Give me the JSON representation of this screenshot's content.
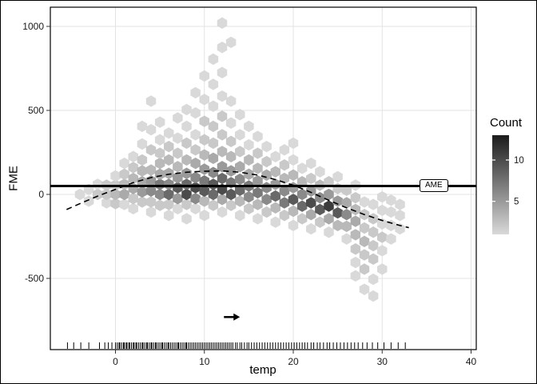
{
  "figure": {
    "background": "#ffffff",
    "border_color": "#000000"
  },
  "chart_data": {
    "type": "scatter",
    "subtype": "hexbin",
    "title": "",
    "xlabel": "temp",
    "ylabel": "FME",
    "xlim": [
      -7.3,
      40.6
    ],
    "ylim": [
      -920,
      1115
    ],
    "x_ticks": [
      0,
      10,
      20,
      30,
      40
    ],
    "y_ticks": [
      -500,
      0,
      500,
      1000
    ],
    "grid": true,
    "grid_color": "#e3e3e3",
    "legend": {
      "title": "Count",
      "position": "right",
      "min": 1,
      "max": 13,
      "tick_values": [
        10,
        5
      ],
      "color_low": "#d9d9d9",
      "color_high": "#1b1b1b"
    },
    "annotations": {
      "ame_label": "AME",
      "ame_line_y": 50,
      "arrow": {
        "x1": 12.2,
        "x2": 14.0,
        "y": -730
      }
    },
    "smooth_curve": [
      [
        -5.5,
        -90
      ],
      [
        -4,
        -55
      ],
      [
        -2,
        -10
      ],
      [
        0,
        30
      ],
      [
        2,
        70
      ],
      [
        4,
        100
      ],
      [
        6,
        120
      ],
      [
        8,
        132
      ],
      [
        10,
        138
      ],
      [
        12,
        140
      ],
      [
        14,
        132
      ],
      [
        16,
        115
      ],
      [
        18,
        88
      ],
      [
        20,
        55
      ],
      [
        22,
        12
      ],
      [
        24,
        -35
      ],
      [
        26,
        -80
      ],
      [
        28,
        -120
      ],
      [
        30,
        -155
      ],
      [
        32,
        -185
      ],
      [
        33,
        -198
      ]
    ],
    "rug_x": [
      -5.4,
      -4.7,
      -3.9,
      -3.0,
      -1.8,
      -1.2,
      -0.8,
      -0.4,
      0.0,
      0.2,
      0.4,
      0.5,
      0.7,
      0.9,
      1.0,
      1.2,
      1.3,
      1.5,
      1.6,
      1.8,
      2.0,
      2.1,
      2.3,
      2.4,
      2.6,
      2.8,
      3.0,
      3.1,
      3.3,
      3.5,
      3.6,
      3.8,
      4.0,
      4.1,
      4.3,
      4.5,
      4.6,
      4.8,
      5.0,
      5.2,
      5.3,
      5.5,
      5.7,
      5.9,
      6.0,
      6.2,
      6.4,
      6.6,
      6.8,
      7.0,
      7.1,
      7.3,
      7.5,
      7.7,
      7.9,
      8.0,
      8.2,
      8.4,
      8.6,
      8.8,
      9.0,
      9.2,
      9.4,
      9.6,
      9.8,
      10.0,
      10.2,
      10.4,
      10.6,
      10.8,
      11.0,
      11.2,
      11.4,
      11.6,
      11.8,
      12.0,
      12.2,
      12.4,
      12.6,
      12.8,
      13.0,
      13.2,
      13.5,
      13.7,
      14.0,
      14.2,
      14.5,
      14.8,
      15.0,
      15.3,
      15.6,
      15.9,
      16.2,
      16.5,
      16.8,
      17.1,
      17.4,
      17.7,
      18.0,
      18.3,
      18.6,
      18.9,
      19.2,
      19.5,
      19.8,
      20.1,
      20.4,
      20.7,
      21.0,
      21.3,
      21.6,
      22.0,
      22.3,
      22.7,
      23.0,
      23.4,
      23.8,
      24.1,
      24.5,
      24.9,
      25.3,
      25.7,
      26.1,
      26.5,
      26.9,
      27.3,
      27.8,
      28.3,
      28.9,
      29.5,
      30.2,
      31.0,
      31.8,
      32.6
    ],
    "hexbins": [
      [
        -4,
        0,
        1
      ],
      [
        -3,
        -40,
        1
      ],
      [
        -3,
        30,
        1
      ],
      [
        -2,
        0,
        2
      ],
      [
        -2,
        60,
        1
      ],
      [
        -1,
        -50,
        1
      ],
      [
        -1,
        0,
        2
      ],
      [
        -1,
        55,
        2
      ],
      [
        0,
        -55,
        2
      ],
      [
        0,
        0,
        3
      ],
      [
        0,
        55,
        2
      ],
      [
        0,
        110,
        1
      ],
      [
        1,
        -60,
        1
      ],
      [
        1,
        0,
        4
      ],
      [
        1,
        60,
        3
      ],
      [
        1,
        120,
        2
      ],
      [
        1,
        185,
        1
      ],
      [
        2,
        -85,
        1
      ],
      [
        2,
        -25,
        2
      ],
      [
        2,
        35,
        4
      ],
      [
        2,
        95,
        3
      ],
      [
        2,
        160,
        2
      ],
      [
        2,
        225,
        1
      ],
      [
        3,
        -45,
        2
      ],
      [
        3,
        15,
        5
      ],
      [
        3,
        75,
        4
      ],
      [
        3,
        140,
        3
      ],
      [
        3,
        205,
        2
      ],
      [
        3,
        300,
        1
      ],
      [
        3,
        405,
        1
      ],
      [
        4,
        -105,
        1
      ],
      [
        4,
        -45,
        2
      ],
      [
        4,
        20,
        6
      ],
      [
        4,
        80,
        5
      ],
      [
        4,
        145,
        3
      ],
      [
        4,
        265,
        2
      ],
      [
        4,
        385,
        1
      ],
      [
        4,
        555,
        1
      ],
      [
        5,
        -65,
        2
      ],
      [
        5,
        0,
        6
      ],
      [
        5,
        60,
        7
      ],
      [
        5,
        120,
        4
      ],
      [
        5,
        185,
        3
      ],
      [
        5,
        245,
        2
      ],
      [
        5,
        325,
        1
      ],
      [
        5,
        430,
        1
      ],
      [
        6,
        -125,
        1
      ],
      [
        6,
        -60,
        2
      ],
      [
        6,
        0,
        8
      ],
      [
        6,
        60,
        6
      ],
      [
        6,
        125,
        4
      ],
      [
        6,
        205,
        3
      ],
      [
        6,
        285,
        2
      ],
      [
        6,
        365,
        1
      ],
      [
        7,
        -85,
        1
      ],
      [
        7,
        -25,
        5
      ],
      [
        7,
        40,
        9
      ],
      [
        7,
        100,
        5
      ],
      [
        7,
        165,
        3
      ],
      [
        7,
        245,
        2
      ],
      [
        7,
        335,
        1
      ],
      [
        7,
        455,
        1
      ],
      [
        8,
        -145,
        1
      ],
      [
        8,
        -60,
        2
      ],
      [
        8,
        0,
        10
      ],
      [
        8,
        60,
        8
      ],
      [
        8,
        125,
        5
      ],
      [
        8,
        205,
        3
      ],
      [
        8,
        305,
        2
      ],
      [
        8,
        405,
        1
      ],
      [
        8,
        505,
        1
      ],
      [
        9,
        -85,
        1
      ],
      [
        9,
        -25,
        6
      ],
      [
        9,
        40,
        10
      ],
      [
        9,
        100,
        6
      ],
      [
        9,
        185,
        4
      ],
      [
        9,
        265,
        2
      ],
      [
        9,
        355,
        1
      ],
      [
        9,
        485,
        1
      ],
      [
        9,
        605,
        1
      ],
      [
        10,
        -125,
        1
      ],
      [
        10,
        -40,
        3
      ],
      [
        10,
        20,
        9
      ],
      [
        10,
        80,
        7
      ],
      [
        10,
        150,
        5
      ],
      [
        10,
        235,
        3
      ],
      [
        10,
        325,
        2
      ],
      [
        10,
        435,
        2
      ],
      [
        10,
        565,
        1
      ],
      [
        10,
        705,
        1
      ],
      [
        11,
        -65,
        2
      ],
      [
        11,
        0,
        8
      ],
      [
        11,
        60,
        9
      ],
      [
        11,
        130,
        6
      ],
      [
        11,
        215,
        4
      ],
      [
        11,
        305,
        2
      ],
      [
        11,
        405,
        2
      ],
      [
        11,
        525,
        1
      ],
      [
        11,
        655,
        1
      ],
      [
        11,
        805,
        1
      ],
      [
        12,
        -105,
        1
      ],
      [
        12,
        -30,
        4
      ],
      [
        12,
        30,
        10
      ],
      [
        12,
        95,
        8
      ],
      [
        12,
        165,
        5
      ],
      [
        12,
        255,
        3
      ],
      [
        12,
        355,
        2
      ],
      [
        12,
        465,
        2
      ],
      [
        12,
        585,
        1
      ],
      [
        12,
        725,
        1
      ],
      [
        12,
        875,
        1
      ],
      [
        12,
        1020,
        1
      ],
      [
        13,
        -65,
        2
      ],
      [
        13,
        0,
        9
      ],
      [
        13,
        70,
        7
      ],
      [
        13,
        140,
        5
      ],
      [
        13,
        225,
        3
      ],
      [
        13,
        315,
        2
      ],
      [
        13,
        425,
        1
      ],
      [
        13,
        555,
        1
      ],
      [
        13,
        905,
        1
      ],
      [
        14,
        -125,
        1
      ],
      [
        14,
        -40,
        3
      ],
      [
        14,
        25,
        8
      ],
      [
        14,
        90,
        6
      ],
      [
        14,
        165,
        4
      ],
      [
        14,
        255,
        2
      ],
      [
        14,
        355,
        1
      ],
      [
        14,
        475,
        1
      ],
      [
        15,
        -85,
        2
      ],
      [
        15,
        -15,
        6
      ],
      [
        15,
        50,
        7
      ],
      [
        15,
        120,
        4
      ],
      [
        15,
        205,
        3
      ],
      [
        15,
        295,
        1
      ],
      [
        15,
        405,
        1
      ],
      [
        16,
        -145,
        1
      ],
      [
        16,
        -60,
        3
      ],
      [
        16,
        10,
        7
      ],
      [
        16,
        80,
        5
      ],
      [
        16,
        155,
        3
      ],
      [
        16,
        245,
        2
      ],
      [
        16,
        345,
        1
      ],
      [
        17,
        -105,
        2
      ],
      [
        17,
        -30,
        6
      ],
      [
        17,
        40,
        6
      ],
      [
        17,
        115,
        4
      ],
      [
        17,
        195,
        2
      ],
      [
        17,
        285,
        1
      ],
      [
        18,
        -165,
        1
      ],
      [
        18,
        -80,
        3
      ],
      [
        18,
        -10,
        8
      ],
      [
        18,
        60,
        5
      ],
      [
        18,
        135,
        3
      ],
      [
        18,
        225,
        1
      ],
      [
        19,
        -125,
        2
      ],
      [
        19,
        -50,
        7
      ],
      [
        19,
        20,
        6
      ],
      [
        19,
        95,
        3
      ],
      [
        19,
        175,
        2
      ],
      [
        19,
        265,
        1
      ],
      [
        20,
        -185,
        1
      ],
      [
        20,
        -100,
        3
      ],
      [
        20,
        -30,
        9
      ],
      [
        20,
        40,
        5
      ],
      [
        20,
        115,
        3
      ],
      [
        20,
        205,
        1
      ],
      [
        20,
        305,
        1
      ],
      [
        21,
        -145,
        2
      ],
      [
        21,
        -70,
        8
      ],
      [
        21,
        0,
        6
      ],
      [
        21,
        75,
        3
      ],
      [
        21,
        155,
        1
      ],
      [
        22,
        -205,
        1
      ],
      [
        22,
        -120,
        4
      ],
      [
        22,
        -50,
        10
      ],
      [
        22,
        20,
        5
      ],
      [
        22,
        95,
        2
      ],
      [
        22,
        185,
        1
      ],
      [
        23,
        -165,
        2
      ],
      [
        23,
        -90,
        9
      ],
      [
        23,
        -20,
        6
      ],
      [
        23,
        55,
        3
      ],
      [
        23,
        135,
        1
      ],
      [
        24,
        -225,
        1
      ],
      [
        24,
        -145,
        4
      ],
      [
        24,
        -70,
        11
      ],
      [
        24,
        0,
        5
      ],
      [
        24,
        75,
        2
      ],
      [
        25,
        -185,
        3
      ],
      [
        25,
        -110,
        9
      ],
      [
        25,
        -40,
        5
      ],
      [
        25,
        35,
        2
      ],
      [
        25,
        105,
        1
      ],
      [
        26,
        -265,
        1
      ],
      [
        26,
        -190,
        3
      ],
      [
        26,
        -120,
        6
      ],
      [
        26,
        -50,
        4
      ],
      [
        26,
        25,
        2
      ],
      [
        27,
        -485,
        1
      ],
      [
        27,
        -405,
        1
      ],
      [
        27,
        -325,
        2
      ],
      [
        27,
        -240,
        3
      ],
      [
        27,
        -160,
        4
      ],
      [
        27,
        -90,
        3
      ],
      [
        27,
        -20,
        2
      ],
      [
        27,
        55,
        1
      ],
      [
        28,
        -565,
        1
      ],
      [
        28,
        -445,
        2
      ],
      [
        28,
        -360,
        2
      ],
      [
        28,
        -280,
        3
      ],
      [
        28,
        -200,
        2
      ],
      [
        28,
        -120,
        2
      ],
      [
        28,
        -45,
        1
      ],
      [
        29,
        -605,
        1
      ],
      [
        29,
        -505,
        1
      ],
      [
        29,
        -385,
        2
      ],
      [
        29,
        -305,
        2
      ],
      [
        29,
        -225,
        2
      ],
      [
        29,
        -145,
        2
      ],
      [
        29,
        -60,
        1
      ],
      [
        30,
        -445,
        1
      ],
      [
        30,
        -335,
        1
      ],
      [
        30,
        -255,
        2
      ],
      [
        30,
        -175,
        1
      ],
      [
        30,
        -95,
        1
      ],
      [
        30,
        -15,
        1
      ],
      [
        31,
        -265,
        1
      ],
      [
        31,
        -185,
        1
      ],
      [
        31,
        -105,
        1
      ],
      [
        31,
        -35,
        1
      ],
      [
        32,
        -205,
        1
      ],
      [
        32,
        -125,
        1
      ],
      [
        32,
        -60,
        1
      ]
    ]
  }
}
